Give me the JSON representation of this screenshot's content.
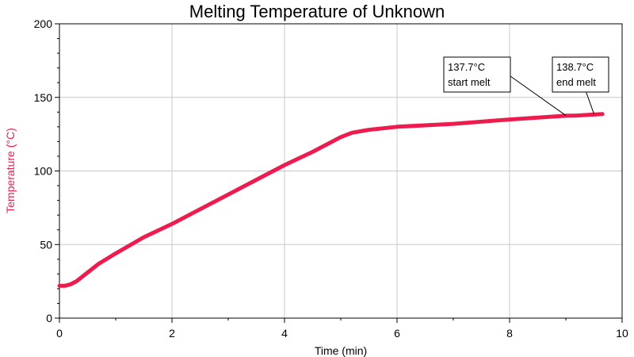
{
  "chart_data": {
    "type": "line",
    "title": "Melting Temperature of Unknown",
    "xlabel": "Time (min)",
    "ylabel": "Temperature (°C)",
    "xlim": [
      0,
      10
    ],
    "ylim": [
      0,
      200
    ],
    "xticks": [
      "0",
      "2",
      "4",
      "6",
      "8",
      "10"
    ],
    "yticks": [
      "0",
      "50",
      "100",
      "150",
      "200"
    ],
    "grid": true,
    "series_color": "#ee1c4e",
    "ylabel_color": "#ee1c4e",
    "series": [
      {
        "x": [
          0,
          0.1,
          0.2,
          0.3,
          0.4,
          0.5,
          0.7,
          1.0,
          1.5,
          2.0,
          2.5,
          3.0,
          3.5,
          4.0,
          4.5,
          5.0,
          5.2,
          5.5,
          6.0,
          7.0,
          8.0,
          9.0,
          9.2,
          9.65
        ],
        "y": [
          22,
          22,
          23,
          25,
          28,
          31,
          37,
          44,
          55,
          64,
          74,
          84,
          94,
          104,
          113,
          123,
          126,
          128,
          130,
          132,
          135,
          137.5,
          137.7,
          138.7
        ]
      }
    ],
    "annotations": [
      {
        "line1": "137.7°C",
        "line2": "start melt",
        "x": 9.0,
        "y": 137.7
      },
      {
        "line1": "138.7°C",
        "line2": "end melt",
        "x": 9.5,
        "y": 138.7
      }
    ]
  }
}
